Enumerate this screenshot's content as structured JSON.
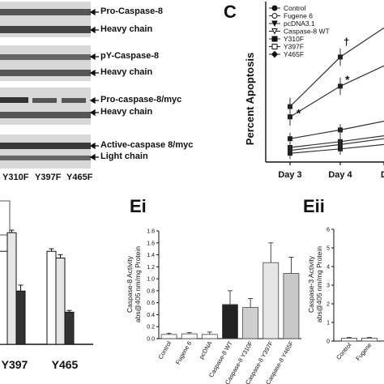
{
  "blots": [
    {
      "name": "blot-panel-1",
      "labels": [
        "Pro-Caspase-8",
        "Heavy chain"
      ]
    },
    {
      "name": "blot-panel-2",
      "labels": [
        "pY-Caspase-8",
        "Heavy chain"
      ]
    },
    {
      "name": "blot-panel-3",
      "labels": [
        "Pro-caspase-8/myc",
        "Heavy chain"
      ]
    },
    {
      "name": "blot-panel-4",
      "labels": [
        "Active-caspase 8/myc",
        "Light chain"
      ]
    }
  ],
  "blot_lane_labels": [
    "Y310F",
    "Y397F",
    "Y465F"
  ],
  "panel_letters": {
    "c": "C",
    "ei": "Ei",
    "eii": "Eii"
  },
  "chart_data": [
    {
      "id": "panel-c",
      "type": "line",
      "ylabel": "Percent Apoptosis",
      "categories": [
        "Day 3",
        "Day 4",
        "D"
      ],
      "legend": [
        "Control",
        "Fugene 6",
        "pcDNA3.1",
        "Caspase-8 WT",
        "Y310F",
        "Y397F",
        "Y465F"
      ],
      "series": [
        {
          "name": "Y310F",
          "values": [
            19,
            36,
            46
          ],
          "errors": [
            3,
            3,
            0
          ]
        },
        {
          "name": "Y465F",
          "values": [
            15.5,
            26,
            33
          ],
          "errors": [
            3,
            3,
            0
          ]
        },
        {
          "name": "Caspase-8 WT",
          "values": [
            8,
            11,
            14
          ],
          "errors": [
            2,
            2,
            0
          ]
        },
        {
          "name": "Control",
          "values": [
            5,
            7,
            9
          ],
          "errors": [
            2,
            2,
            0
          ]
        },
        {
          "name": "Fugene 6",
          "values": [
            4,
            6,
            8
          ],
          "errors": [
            2,
            2,
            0
          ]
        },
        {
          "name": "pcDNA3.1",
          "values": [
            3,
            4.5,
            6
          ],
          "errors": [
            2,
            2,
            0
          ]
        }
      ],
      "annotations": [
        "†",
        "*",
        "*"
      ],
      "ylim": [
        0,
        50
      ]
    },
    {
      "id": "panel-d",
      "type": "bar",
      "categories": [
        "Y397",
        "Y465"
      ],
      "series": [
        {
          "name": "",
          "color": "#ffffff",
          "values": [
            1.1,
            1.1
          ],
          "errors": [
            0,
            0.03
          ]
        },
        {
          "name": "",
          "color": "#e6e6e6",
          "values": [
            1.32,
            1.02
          ],
          "errors": [
            0.03,
            0.04
          ]
        },
        {
          "name": "",
          "color": "#333333",
          "values": [
            0.63,
            0.38
          ],
          "errors": [
            0.07,
            0.02
          ]
        }
      ],
      "ylim": [
        0,
        1.6
      ]
    },
    {
      "id": "panel-ei",
      "type": "bar",
      "ylabel": "Caspase-8 Activity abs@405 nm/mg Protein",
      "categories": [
        "Control",
        "Fugene 6",
        "pcDNA",
        "Caspase-8 WT",
        "Caspase-8 Y310F",
        "Caspase-8 Y397F",
        "Caspase-8 Y465F"
      ],
      "values": [
        0.07,
        0.08,
        0.07,
        0.57,
        0.52,
        1.27,
        1.09
      ],
      "errors": [
        0.02,
        0.02,
        0.04,
        0.23,
        0.15,
        0.33,
        0.27
      ],
      "colors": [
        "#ffffff",
        "#ffffff",
        "#ffffff",
        "#222222",
        "#cfcfcf",
        "#e6e6e6",
        "#c8c8c8"
      ],
      "yticks": [
        "0.0",
        "0.2",
        "0.4",
        "0.6",
        "0.8",
        "1.0",
        "1.2",
        "1.4",
        "1.6",
        "1.8"
      ],
      "ylim": [
        0,
        1.8
      ]
    },
    {
      "id": "panel-eii",
      "type": "bar",
      "ylabel": "Caspase-3 Activity abs@405 nm/mg Protein",
      "categories": [
        "Control",
        "Fugene"
      ],
      "values": [
        0.15,
        0.15
      ],
      "errors": [
        0.05,
        0.05
      ],
      "yticks": [
        "0",
        "1",
        "2",
        "3",
        "4",
        "5",
        "6"
      ],
      "ylim": [
        0,
        6
      ]
    }
  ]
}
